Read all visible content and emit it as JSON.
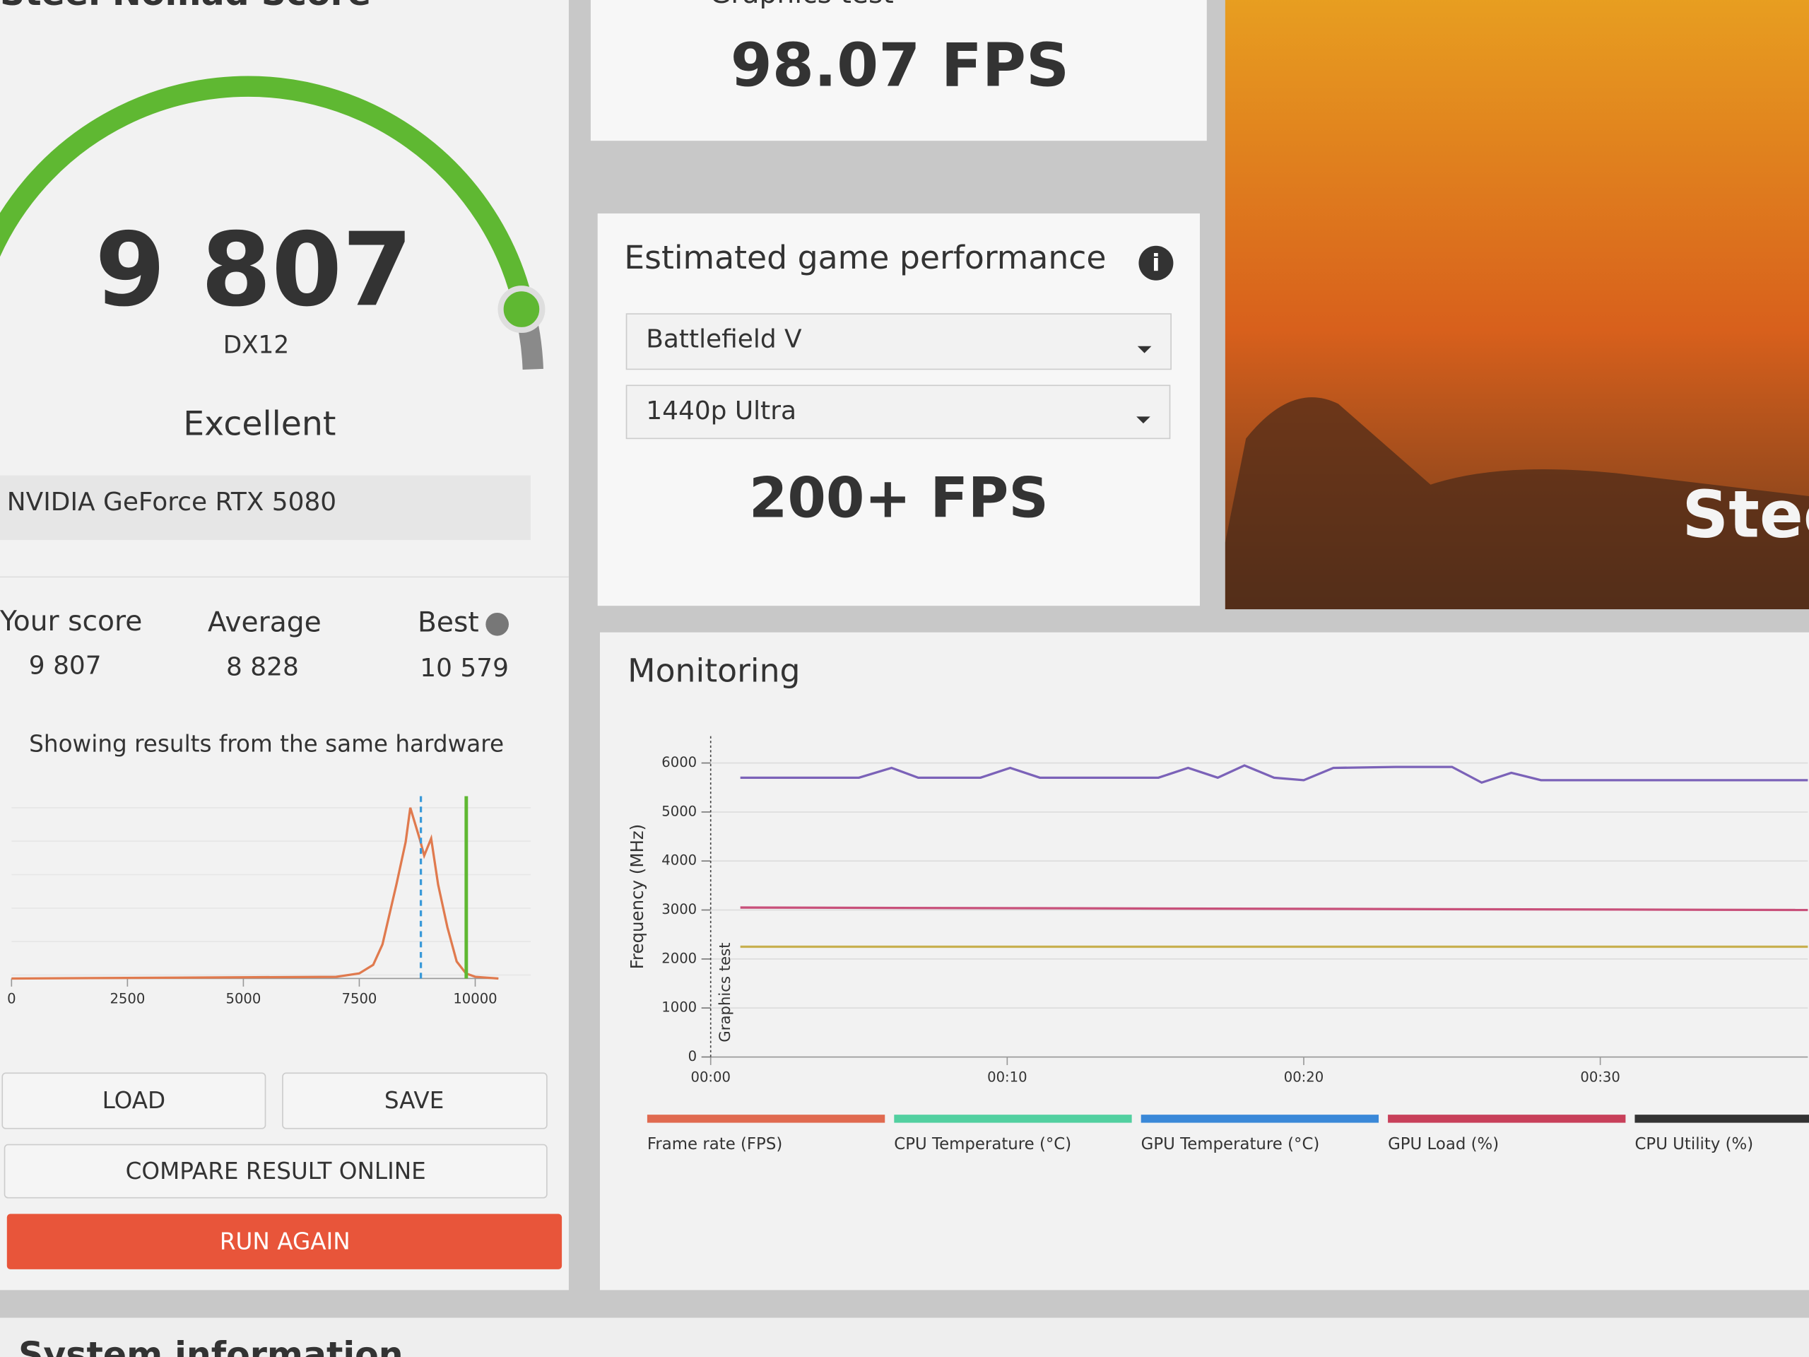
{
  "score_panel": {
    "title": "Steel Nomad Score",
    "score": "9 807",
    "api": "DX12",
    "rating": "Excellent",
    "gpu": "NVIDIA GeForce RTX 5080",
    "stats": [
      {
        "label": "Your score",
        "value": "9 807"
      },
      {
        "label": "Average",
        "value": "8 828"
      },
      {
        "label": "Best",
        "value": "10 579"
      }
    ],
    "note": "Showing results from the same hardware",
    "buttons": [
      "LOAD",
      "SAVE",
      "COMPARE RESULT ONLINE",
      "RUN AGAIN"
    ]
  },
  "graphics_test": {
    "title": "Graphics test",
    "fps": "98.07 FPS"
  },
  "estimate": {
    "title": "Estimated game performance",
    "game": "Battlefield V",
    "preset": "1440p Ultra",
    "fps": "200+ FPS"
  },
  "banner": {
    "title": "Steel Nomad"
  },
  "chart_data": [
    {
      "type": "line",
      "color": "#e07a4e",
      "x": [
        0,
        7000,
        7500,
        7800,
        8000,
        8300,
        8500,
        8600,
        8800,
        8900,
        9050,
        9200,
        9400,
        9600,
        9800,
        10000,
        10500
      ],
      "values": [
        0,
        1,
        3,
        8,
        20,
        55,
        80,
        100,
        82,
        72,
        82,
        55,
        30,
        10,
        3,
        1,
        0
      ],
      "xlim": [
        0,
        10500
      ],
      "ylim": [
        0,
        100
      ],
      "xticks": [
        0,
        2500,
        5000,
        7500,
        10000
      ],
      "markers": [
        {
          "x": 8828,
          "color": "#3a9ad9",
          "dashed": true
        },
        {
          "x": 9807,
          "color": "#5fb832",
          "dashed": false
        }
      ]
    },
    {
      "type": "line",
      "title": "Monitoring",
      "y_label": "Frequency (MHz)",
      "marker_label": "Graphics test",
      "xlim": [
        0,
        37
      ],
      "ylim": [
        0,
        6500
      ],
      "yticks": [
        0,
        1000,
        2000,
        3000,
        4000,
        5000,
        6000
      ],
      "xticks": [
        {
          "value": 0,
          "label": "00:00"
        },
        {
          "value": 10,
          "label": "00:10"
        },
        {
          "value": 20,
          "label": "00:20"
        },
        {
          "value": 30,
          "label": "00:30"
        }
      ],
      "grid": true,
      "series": [
        {
          "color": "#7b62b8",
          "x": [
            1,
            5,
            6.1,
            7,
            9.1,
            10.1,
            11.1,
            15.1,
            16.1,
            17.1,
            18,
            19,
            20,
            21,
            23.1,
            25,
            26,
            27,
            28,
            37
          ],
          "values": [
            5700,
            5700,
            5900,
            5700,
            5700,
            5900,
            5700,
            5700,
            5900,
            5700,
            5950,
            5700,
            5650,
            5900,
            5920,
            5920,
            5600,
            5800,
            5650,
            5650
          ]
        },
        {
          "color": "#c8507a",
          "x": [
            1,
            37
          ],
          "values": [
            3050,
            3000
          ]
        },
        {
          "color": "#c8b050",
          "x": [
            1,
            37
          ],
          "values": [
            2250,
            2250
          ]
        }
      ],
      "legend": [
        {
          "name": "Frame rate (FPS)",
          "color": "#e06a50"
        },
        {
          "name": "CPU Temperature (°C)",
          "color": "#52d0a0"
        },
        {
          "name": "GPU Temperature (°C)",
          "color": "#3a88d8"
        },
        {
          "name": "GPU Load (%)",
          "color": "#c8405a"
        },
        {
          "name": "CPU Utility (%)",
          "color": "#333333"
        }
      ]
    }
  ],
  "footer": {
    "title": "System information"
  }
}
